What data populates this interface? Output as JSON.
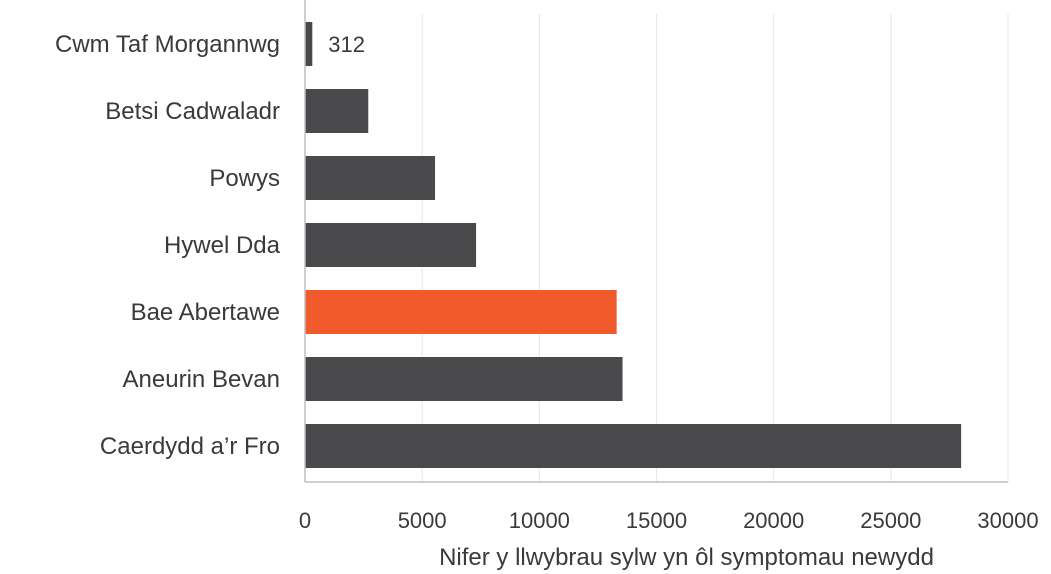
{
  "chart_data": {
    "type": "bar",
    "orientation": "horizontal",
    "categories": [
      "Cwm Taf Morgannwg",
      "Betsi Cadwaladr",
      "Powys",
      "Hywel Dda",
      "Bae Abertawe",
      "Aneurin Bevan",
      "Caerdydd a’r Fro"
    ],
    "values": [
      312,
      2700,
      5550,
      7300,
      13300,
      13550,
      28000
    ],
    "data_labels": [
      "312",
      "",
      "",
      "",
      "",
      "",
      ""
    ],
    "xticks": [
      "0",
      "5000",
      "10000",
      "15000",
      "20000",
      "25000",
      "30000"
    ],
    "xlim": [
      0,
      30000
    ],
    "xlabel": "Nifer y llwybrau sylw yn ôl symptomau newydd",
    "grid": "vertical",
    "legend": "none"
  },
  "colors": {
    "bar_default": "#4a4a4c",
    "bar_highlight": "#f15a2b",
    "highlight_category": "Bae Abertawe"
  }
}
